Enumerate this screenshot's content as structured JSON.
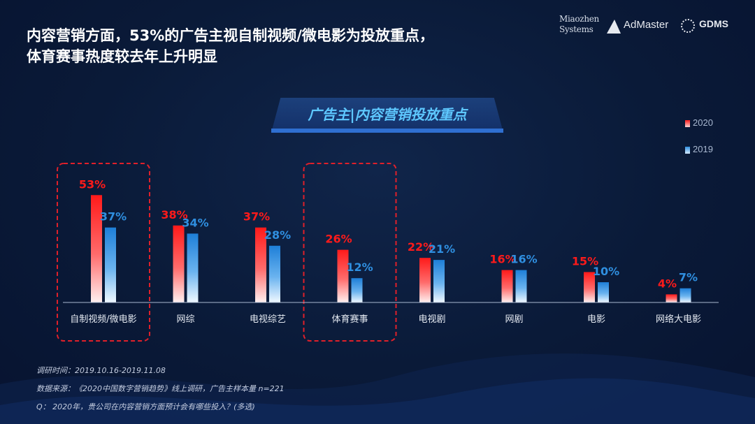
{
  "headline": {
    "line1": "内容营销方面，53%的广告主视自制视频/微电影为投放重点，",
    "line2": "体育赛事热度较去年上升明显"
  },
  "logos": {
    "miaozhen_line1": "Miaozhen",
    "miaozhen_line2": "Systems",
    "admaster": "AdMaster",
    "gdms": "GDMS"
  },
  "chart_data": {
    "type": "bar",
    "title": "广告主|内容营销投放重点",
    "categories": [
      "自制视频/微电影",
      "网综",
      "电视综艺",
      "体育赛事",
      "电视剧",
      "网剧",
      "电影",
      "网络大电影"
    ],
    "series": [
      {
        "name": "2020",
        "values": [
          53,
          38,
          37,
          26,
          22,
          16,
          15,
          4
        ],
        "labels": [
          "53%",
          "38%",
          "37%",
          "26%",
          "22%",
          "16%",
          "15%",
          "4%"
        ],
        "color": "#ff1a1a"
      },
      {
        "name": "2019",
        "values": [
          37,
          34,
          28,
          12,
          21,
          16,
          10,
          7
        ],
        "labels": [
          "37%",
          "34%",
          "28%",
          "12%",
          "21%",
          "16%",
          "10%",
          "7%"
        ],
        "color": "#2f8fe0"
      }
    ],
    "highlighted_categories": [
      "自制视频/微电影",
      "体育赛事"
    ],
    "ylim": [
      0,
      60
    ],
    "grid": false,
    "legend_position": "top-right",
    "xlabel": "",
    "ylabel": ""
  },
  "footnotes": {
    "survey_time": "调研时间：2019.10.16-2019.11.08",
    "source": "数据来源：《2020中国数字营销趋势》线上调研，广告主样本量 n=221",
    "question": "Q：  2020年，贵公司在内容营销方面预计会有哪些投入？(多选)"
  },
  "colors": {
    "background": "#0a1a38",
    "accent_red": "#ff1a1a",
    "accent_blue": "#2f8fe0",
    "title_cyan": "#5ec8ff",
    "highlight_border": "#e0202a"
  }
}
